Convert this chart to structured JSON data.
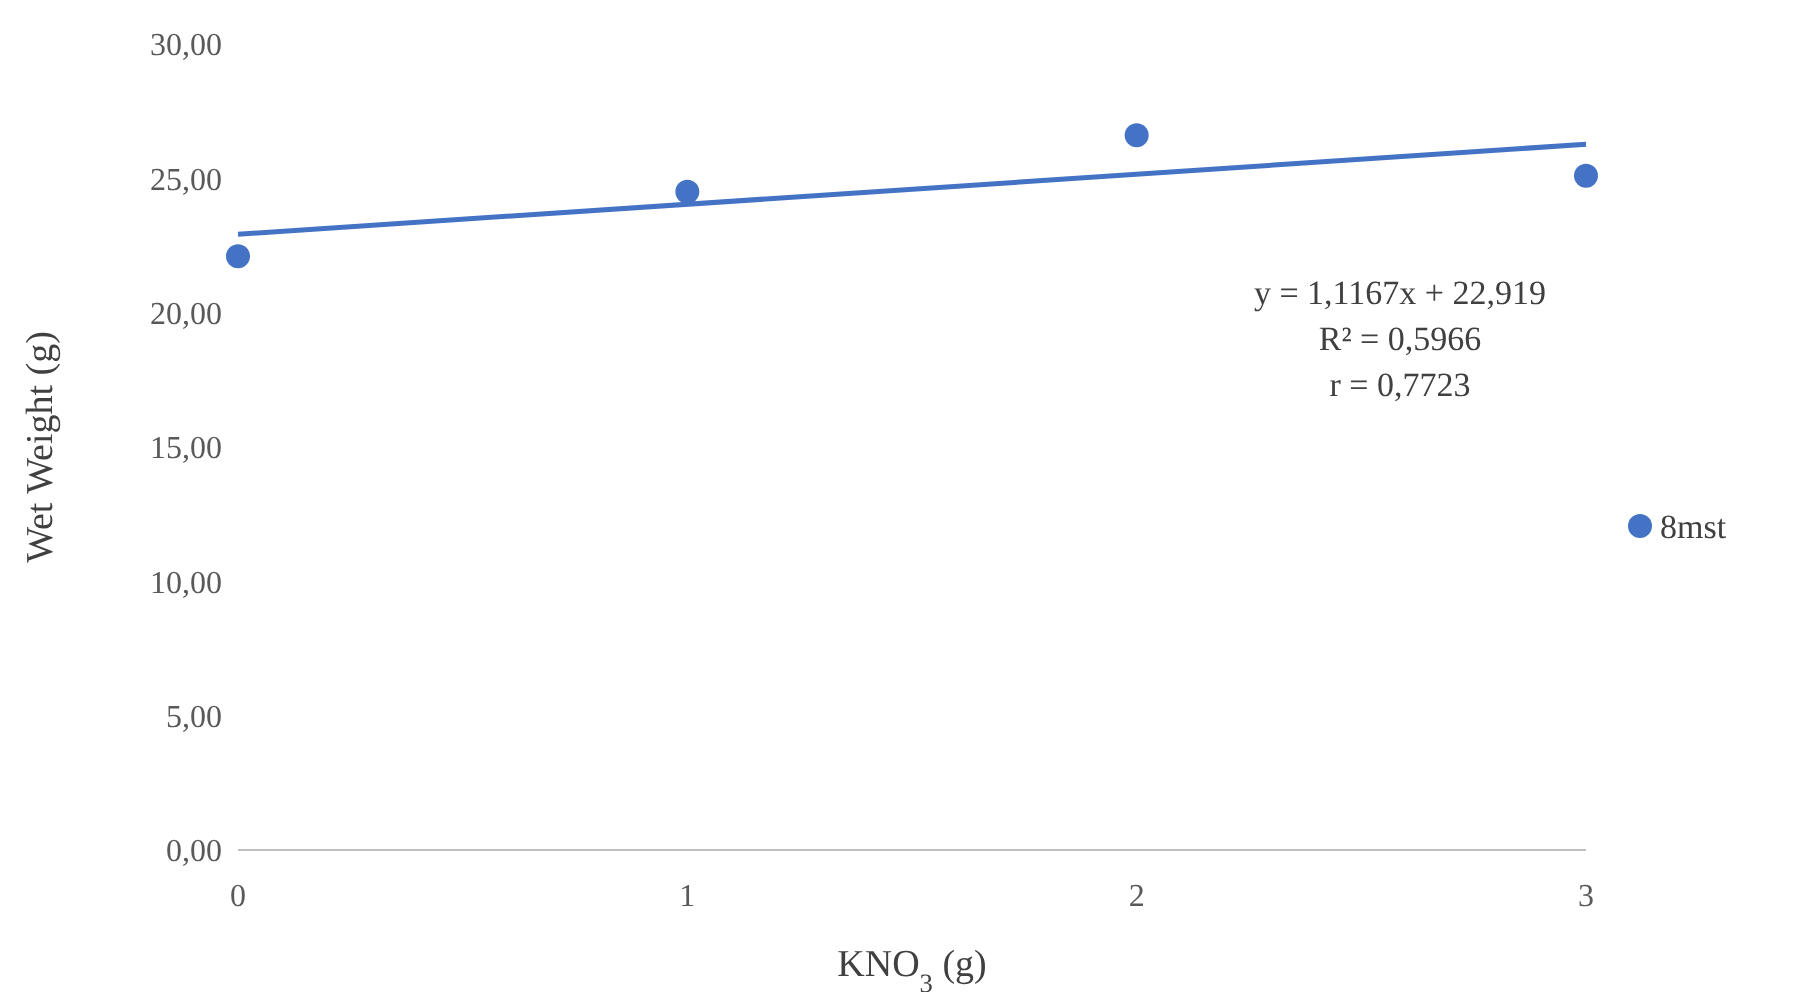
{
  "chart_data": {
    "type": "scatter",
    "xlabel": "KNO$_{3}$ (g)",
    "ylabel": "Wet Weight (g)",
    "x": [
      0,
      1,
      2,
      3
    ],
    "series": [
      {
        "name": "8mst",
        "color": "#4472c4",
        "values": [
          22.1,
          24.5,
          26.6,
          25.1
        ],
        "marker": "circle"
      },
      {
        "type": "line",
        "color": "#4472c4",
        "x": [
          0,
          3
        ],
        "values": [
          22.919,
          26.2691
        ]
      }
    ],
    "xlim": [
      0,
      3
    ],
    "xticks": [
      0,
      1,
      2,
      3
    ],
    "ylim": [
      0,
      30
    ],
    "yticks": [
      {
        "value": 0,
        "label": "0,00"
      },
      {
        "value": 5,
        "label": "5,00"
      },
      {
        "value": 10,
        "label": "10,00"
      },
      {
        "value": 15,
        "label": "15,00"
      },
      {
        "value": 20,
        "label": "20,00"
      },
      {
        "value": 25,
        "label": "25,00"
      },
      {
        "value": 30,
        "label": "30,00"
      }
    ],
    "grid": false,
    "legend": "right",
    "annotations": [
      "y = 1,1167x + 22,919",
      "R² = 0,5966",
      "r = 0,7723"
    ]
  }
}
